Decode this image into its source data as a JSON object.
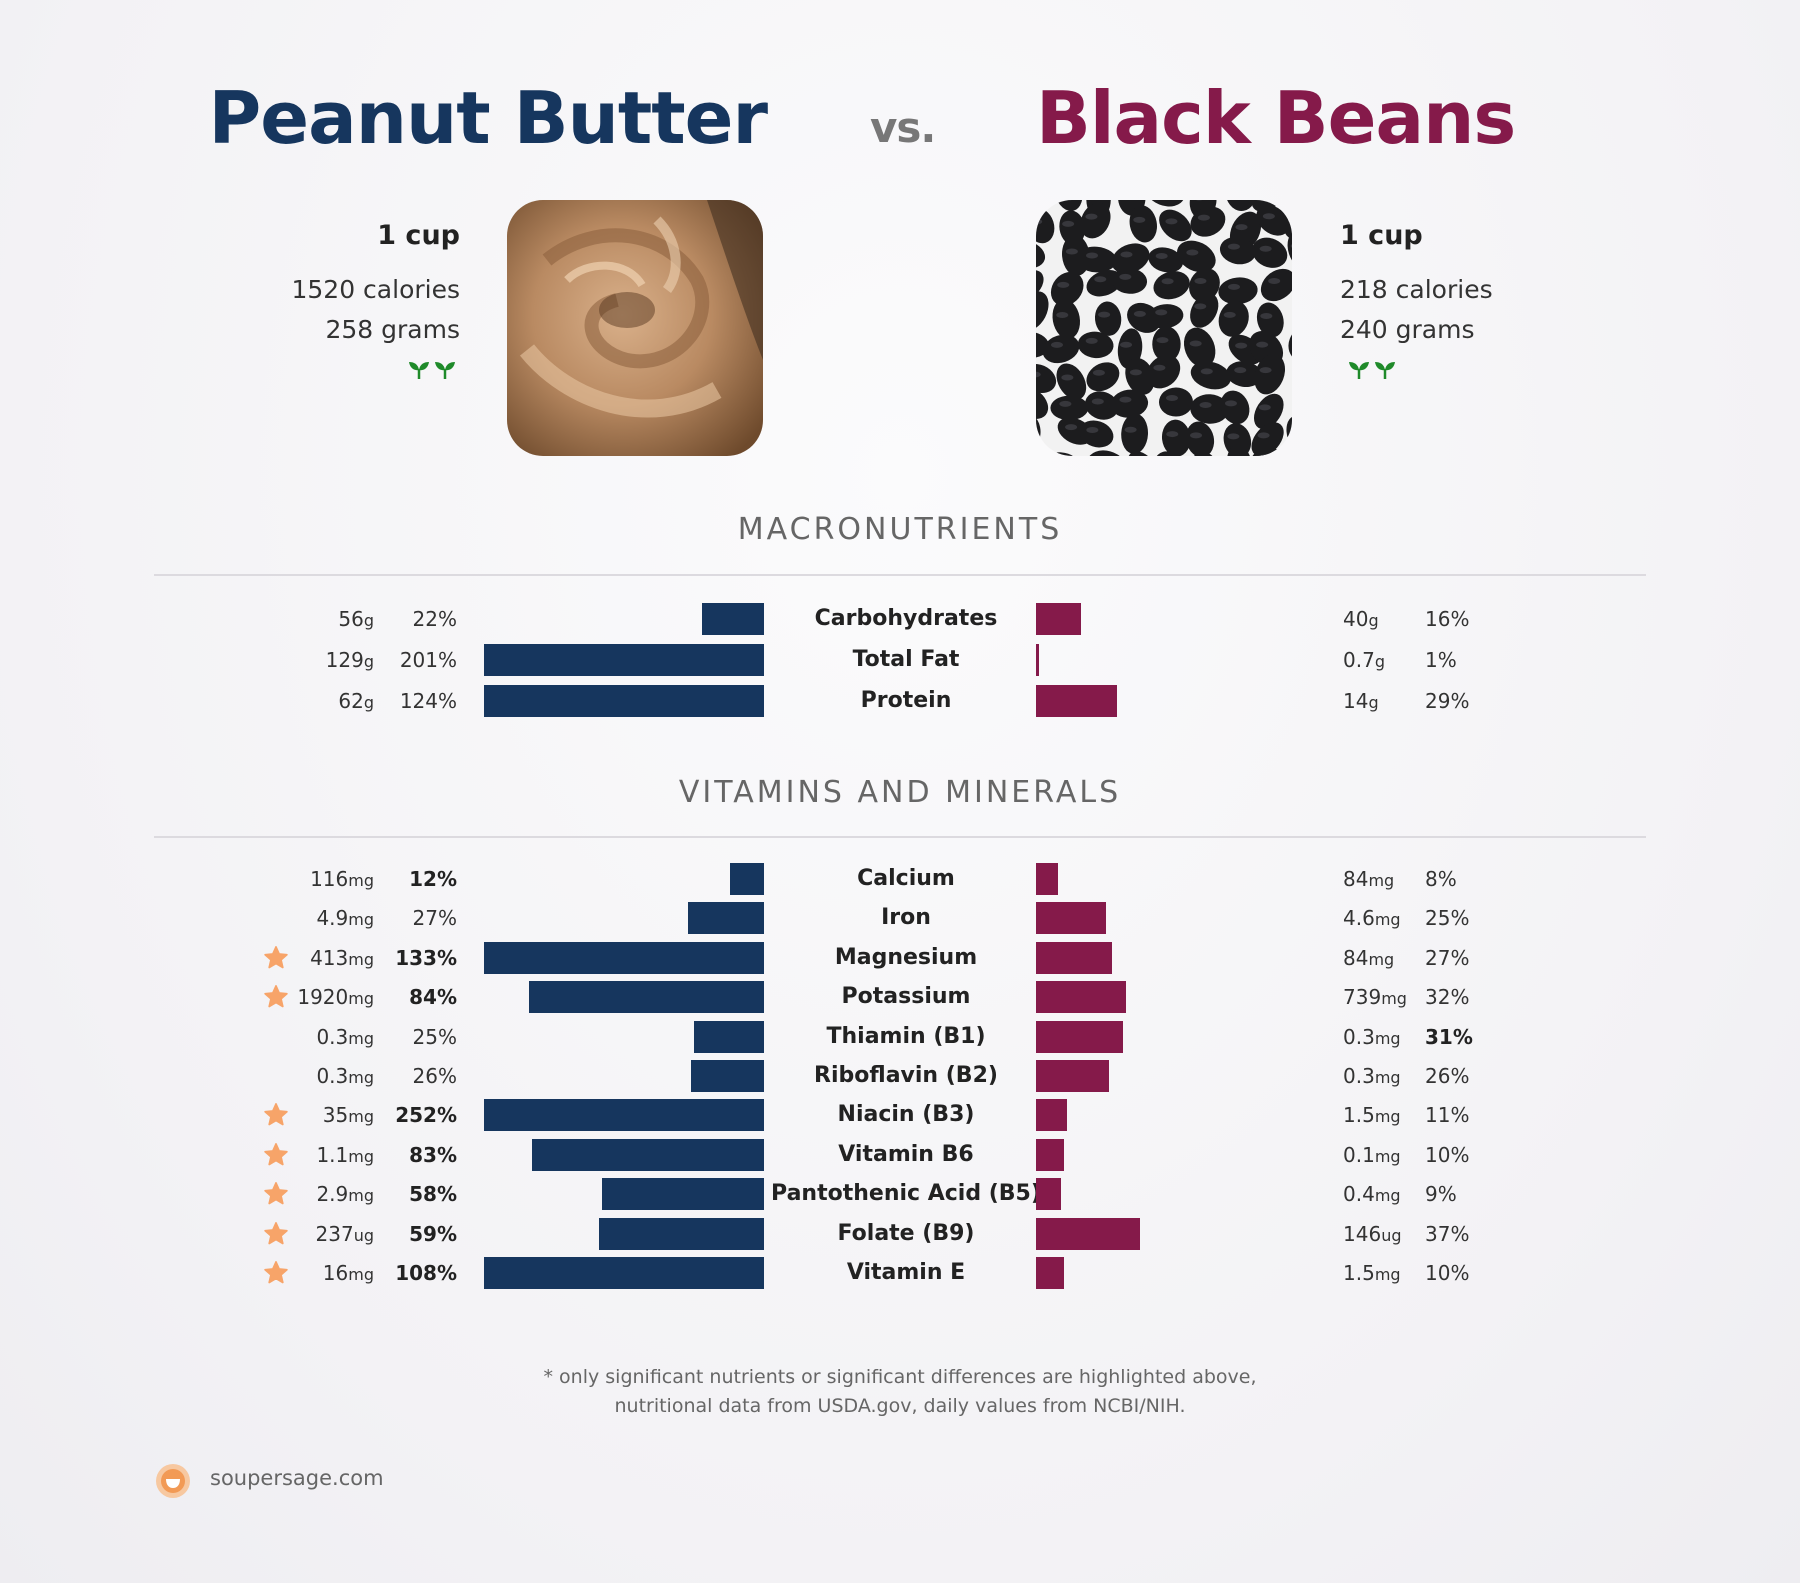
{
  "header": {
    "left_title": "Peanut Butter",
    "vs": "vs.",
    "right_title": "Black Beans"
  },
  "colors": {
    "left": "#16365e",
    "right": "#851a4a",
    "star": "#f7a469"
  },
  "left_food": {
    "serving": "1 cup",
    "calories": "1520 calories",
    "grams": "258 grams",
    "icon": "sprout-icon"
  },
  "right_food": {
    "serving": "1 cup",
    "calories": "218 calories",
    "grams": "240 grams",
    "icon": "sprout-icon"
  },
  "sections": {
    "macros": "MACRONUTRIENTS",
    "vitamins": "VITAMINS AND MINERALS"
  },
  "chart_data": [
    {
      "type": "bar",
      "title": "MACRONUTRIENTS",
      "categories": [
        "Carbohydrates",
        "Total Fat",
        "Protein"
      ],
      "series": [
        {
          "name": "Peanut Butter",
          "amounts": [
            "56",
            "129",
            "62"
          ],
          "units": [
            "g",
            "g",
            "g"
          ],
          "pct_labels": [
            "22%",
            "201%",
            "124%"
          ],
          "values": [
            22,
            201,
            124
          ],
          "bold": [
            false,
            false,
            false
          ]
        },
        {
          "name": "Black Beans",
          "amounts": [
            "40",
            "0.7",
            "14"
          ],
          "units": [
            "g",
            "g",
            "g"
          ],
          "pct_labels": [
            "16%",
            "1%",
            "29%"
          ],
          "values": [
            16,
            1,
            29
          ],
          "bold": [
            false,
            false,
            false
          ]
        }
      ],
      "stars": [
        false,
        false,
        false
      ]
    },
    {
      "type": "bar",
      "title": "VITAMINS AND MINERALS",
      "categories": [
        "Calcium",
        "Iron",
        "Magnesium",
        "Potassium",
        "Thiamin (B1)",
        "Riboflavin (B2)",
        "Niacin (B3)",
        "Vitamin B6",
        "Pantothenic Acid (B5)",
        "Folate (B9)",
        "Vitamin E"
      ],
      "series": [
        {
          "name": "Peanut Butter",
          "amounts": [
            "116",
            "4.9",
            "413",
            "1920",
            "0.3",
            "0.3",
            "35",
            "1.1",
            "2.9",
            "237",
            "16"
          ],
          "units": [
            "mg",
            "mg",
            "mg",
            "mg",
            "mg",
            "mg",
            "mg",
            "mg",
            "mg",
            "ug",
            "mg"
          ],
          "pct_labels": [
            "12%",
            "27%",
            "133%",
            "84%",
            "25%",
            "26%",
            "252%",
            "83%",
            "58%",
            "59%",
            "108%"
          ],
          "values": [
            12,
            27,
            133,
            84,
            25,
            26,
            252,
            83,
            58,
            59,
            108
          ],
          "bold": [
            true,
            false,
            true,
            true,
            false,
            false,
            true,
            true,
            true,
            true,
            true
          ]
        },
        {
          "name": "Black Beans",
          "amounts": [
            "84",
            "4.6",
            "84",
            "739",
            "0.3",
            "0.3",
            "1.5",
            "0.1",
            "0.4",
            "146",
            "1.5"
          ],
          "units": [
            "mg",
            "mg",
            "mg",
            "mg",
            "mg",
            "mg",
            "mg",
            "mg",
            "mg",
            "ug",
            "mg"
          ],
          "pct_labels": [
            "8%",
            "25%",
            "27%",
            "32%",
            "31%",
            "26%",
            "11%",
            "10%",
            "9%",
            "37%",
            "10%"
          ],
          "values": [
            8,
            25,
            27,
            32,
            31,
            26,
            11,
            10,
            9,
            37,
            10
          ],
          "bold": [
            false,
            false,
            false,
            false,
            true,
            false,
            false,
            false,
            false,
            false,
            false
          ]
        }
      ],
      "stars": [
        false,
        false,
        true,
        true,
        false,
        false,
        true,
        true,
        true,
        true,
        true
      ]
    }
  ],
  "footnote": {
    "line1": "* only significant nutrients or significant differences are highlighted above,",
    "line2": "nutritional data from USDA.gov, daily values from NCBI/NIH."
  },
  "brand": {
    "name": "soupersage.com",
    "icon": "soupersage-logo-icon"
  }
}
